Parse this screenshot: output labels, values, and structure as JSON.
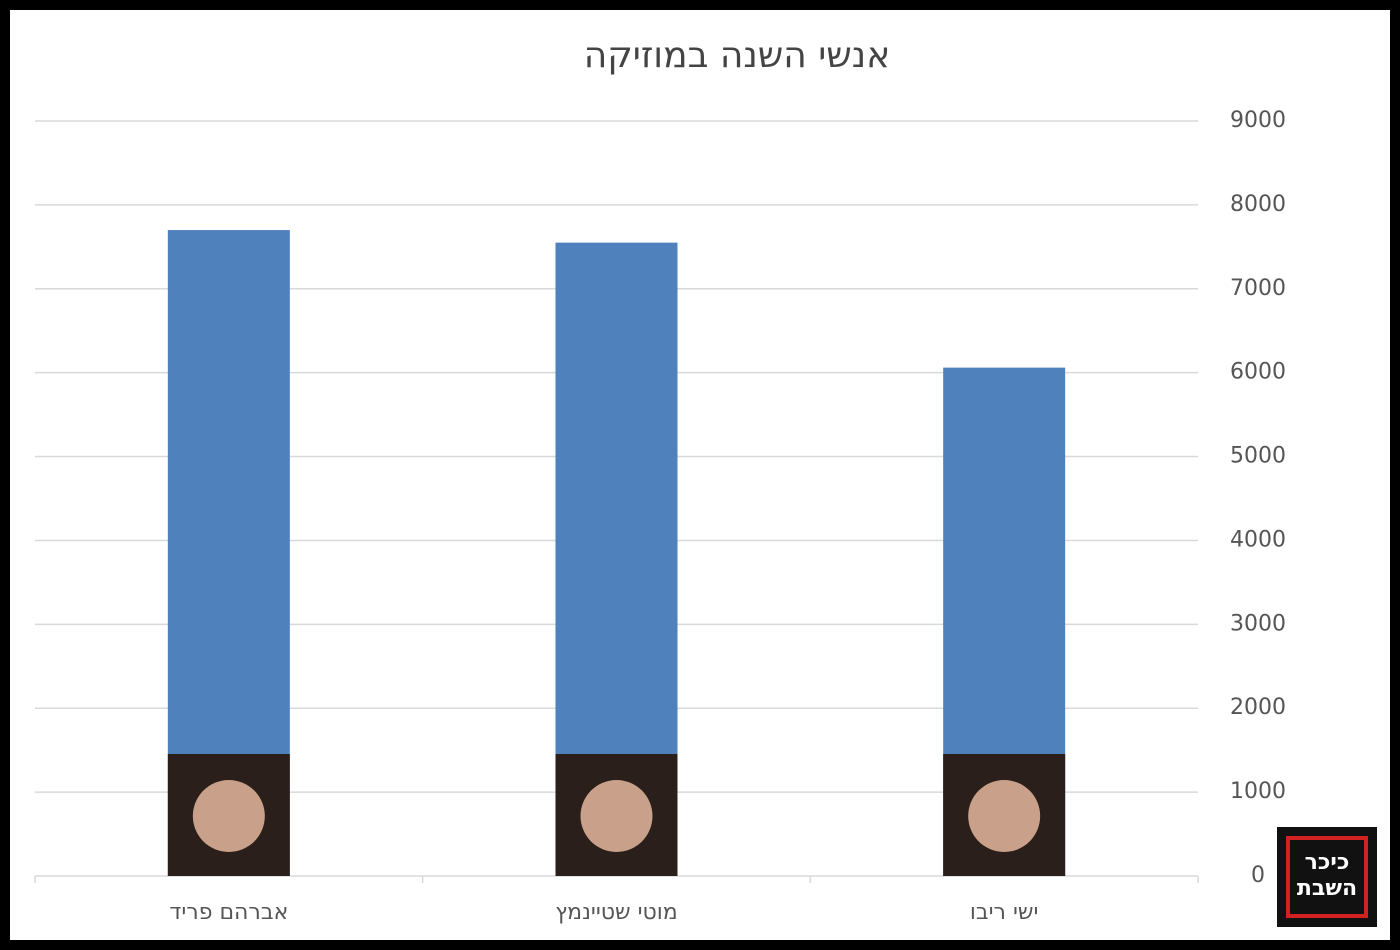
{
  "chart_data": {
    "type": "bar",
    "title": "אנשי השנה במוזיקה",
    "categories": [
      "אברהם פריד",
      "מוטי שטיינמץ",
      "ישי ריבו"
    ],
    "values": [
      7700,
      7550,
      6060
    ],
    "color": "#4f81bd",
    "ylim": [
      0,
      9000
    ],
    "yticks": [
      0,
      1000,
      2000,
      3000,
      4000,
      5000,
      6000,
      7000,
      8000,
      9000
    ],
    "grid": true,
    "y_axis_side": "right"
  },
  "logo": {
    "line1": "כיכר",
    "line2": "השבת"
  }
}
